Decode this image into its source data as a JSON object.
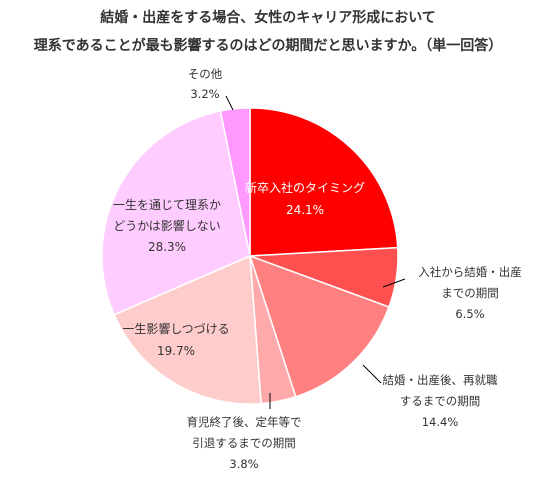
{
  "chart_data": {
    "type": "pie",
    "title_lines": [
      "結婚・出産をする場合、女性のキャリア形成において",
      "理系であることが最も影響するのはどの期間だと思いますか。（単一回答）"
    ],
    "slices": [
      {
        "label_lines": [
          "新卒入社のタイミング"
        ],
        "value": 24.1,
        "value_text": "24.1%",
        "color": "#ff0000"
      },
      {
        "label_lines": [
          "入社から結婚・出産",
          "までの期間"
        ],
        "value": 6.5,
        "value_text": "6.5%",
        "color": "#ff5050"
      },
      {
        "label_lines": [
          "結婚・出産後、再就職",
          "するまでの期間"
        ],
        "value": 14.4,
        "value_text": "14.4%",
        "color": "#ff8080"
      },
      {
        "label_lines": [
          "育児終了後、定年等で",
          "引退するまでの期間"
        ],
        "value": 3.8,
        "value_text": "3.8%",
        "color": "#ffaaaa"
      },
      {
        "label_lines": [
          "一生影響しつづける"
        ],
        "value": 19.7,
        "value_text": "19.7%",
        "color": "#ffcccc"
      },
      {
        "label_lines": [
          "一生を通じて理系か",
          "どうかは影響しない"
        ],
        "value": 28.3,
        "value_text": "28.3%",
        "color": "#ffccff"
      },
      {
        "label_lines": [
          "その他"
        ],
        "value": 3.2,
        "value_text": "3.2%",
        "color": "#ff99ff"
      }
    ]
  }
}
